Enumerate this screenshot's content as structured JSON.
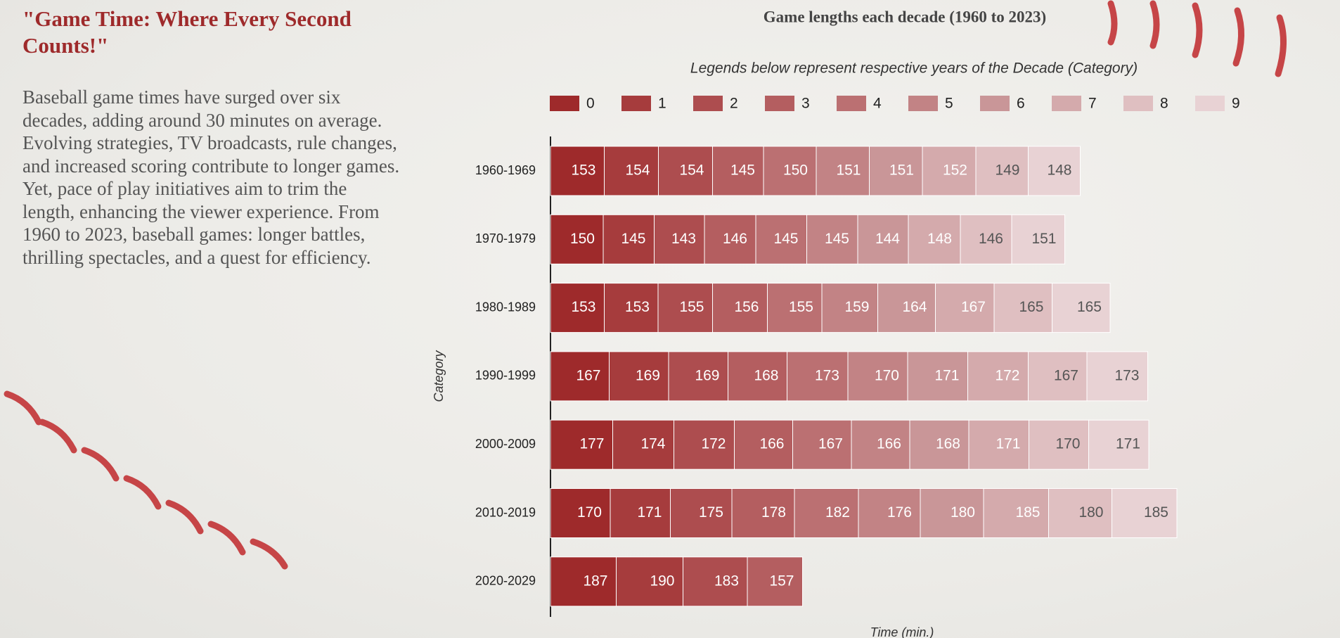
{
  "header": {
    "title": "\"Game Time: Where Every Second Counts!\"",
    "description": "Baseball game times have surged over six decades, adding around 30 minutes on average. Evolving strategies, TV broadcasts, rule changes, and increased scoring contribute to longer games. Yet, pace of play initiatives aim to trim the length, enhancing the viewer experience. From 1960 to 2023, baseball games: longer battles, thrilling spectacles, and a quest for efficiency."
  },
  "chart_data": {
    "type": "stacked-bar-horizontal",
    "title": "Game lengths each decade (1960 to 2023)",
    "subtitle": "Legends below represent respective years of the Decade (Category)",
    "xlabel": "Time (min.)",
    "ylabel": "Category",
    "categories": [
      "1960-1969",
      "1970-1979",
      "1980-1989",
      "1990-1999",
      "2000-2009",
      "2010-2019",
      "2020-2029"
    ],
    "xlim": [
      0,
      1800
    ],
    "series": [
      {
        "name": "0",
        "color": "#9e2a2b",
        "values": [
          153,
          150,
          153,
          167,
          177,
          170,
          187
        ]
      },
      {
        "name": "1",
        "color": "#a63c3d",
        "values": [
          154,
          145,
          153,
          169,
          174,
          171,
          190
        ]
      },
      {
        "name": "2",
        "color": "#ad4d4f",
        "values": [
          154,
          143,
          155,
          169,
          172,
          175,
          183
        ]
      },
      {
        "name": "3",
        "color": "#b45e60",
        "values": [
          145,
          146,
          156,
          168,
          166,
          178,
          157
        ]
      },
      {
        "name": "4",
        "color": "#bb7072",
        "values": [
          150,
          145,
          155,
          173,
          167,
          182,
          null
        ]
      },
      {
        "name": "5",
        "color": "#c28385",
        "values": [
          151,
          145,
          159,
          170,
          166,
          176,
          null
        ]
      },
      {
        "name": "6",
        "color": "#c99698",
        "values": [
          151,
          144,
          164,
          171,
          168,
          180,
          null
        ]
      },
      {
        "name": "7",
        "color": "#d4aaac",
        "values": [
          152,
          148,
          167,
          172,
          171,
          185,
          null
        ]
      },
      {
        "name": "8",
        "color": "#dfbfc1",
        "values": [
          149,
          146,
          165,
          167,
          170,
          180,
          null
        ]
      },
      {
        "name": "9",
        "color": "#e8d2d4",
        "values": [
          148,
          151,
          165,
          173,
          171,
          185,
          null
        ]
      }
    ]
  }
}
